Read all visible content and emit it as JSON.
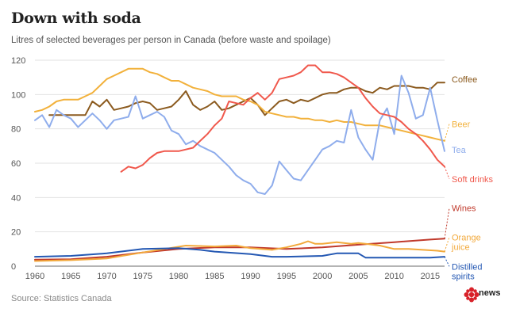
{
  "title": "Down with soda",
  "subtitle": "Litres of selected beverages per person in Canada (before waste and spoilage)",
  "source": "Source: Statistics Canada",
  "logo_text": "news",
  "chart_data": {
    "type": "line",
    "xlim": [
      1960,
      2017
    ],
    "ylim": [
      0,
      120
    ],
    "xticks": [
      1960,
      1965,
      1970,
      1975,
      1980,
      1985,
      1990,
      1995,
      2000,
      2005,
      2010,
      2015
    ],
    "yticks": [
      0,
      20,
      40,
      60,
      80,
      100,
      120
    ],
    "grid": true,
    "series": [
      {
        "name": "Coffee",
        "color": "#8b5a1e",
        "label_lines": [
          "Coffee"
        ],
        "x": [
          1962,
          1963,
          1964,
          1965,
          1966,
          1967,
          1968,
          1969,
          1970,
          1971,
          1972,
          1973,
          1974,
          1975,
          1976,
          1977,
          1978,
          1979,
          1980,
          1981,
          1982,
          1983,
          1984,
          1985,
          1986,
          1987,
          1988,
          1989,
          1990,
          1991,
          1992,
          1993,
          1994,
          1995,
          1996,
          1997,
          1998,
          1999,
          2000,
          2001,
          2002,
          2003,
          2004,
          2005,
          2006,
          2007,
          2008,
          2009,
          2010,
          2011,
          2012,
          2013,
          2014,
          2015,
          2016,
          2017
        ],
        "y": [
          88,
          88,
          88,
          88,
          88,
          88,
          96,
          93,
          97,
          91,
          92,
          93,
          95,
          96,
          95,
          91,
          92,
          93,
          97,
          102,
          94,
          91,
          93,
          96,
          91,
          92,
          94,
          96,
          98,
          94,
          88,
          92,
          96,
          97,
          95,
          97,
          96,
          98,
          100,
          101,
          101,
          103,
          104,
          104,
          102,
          101,
          104,
          103,
          105,
          105,
          105,
          104,
          104,
          103,
          107,
          107
        ]
      },
      {
        "name": "Beer",
        "color": "#f2b13b",
        "label_lines": [
          "Beer"
        ],
        "x": [
          1960,
          1961,
          1962,
          1963,
          1964,
          1965,
          1966,
          1967,
          1968,
          1969,
          1970,
          1971,
          1972,
          1973,
          1974,
          1975,
          1976,
          1977,
          1978,
          1979,
          1980,
          1981,
          1982,
          1983,
          1984,
          1985,
          1986,
          1987,
          1988,
          1989,
          1990,
          1991,
          1992,
          1993,
          1994,
          1995,
          1996,
          1997,
          1998,
          1999,
          2000,
          2001,
          2002,
          2003,
          2004,
          2005,
          2006,
          2007,
          2008,
          2009,
          2010,
          2011,
          2012,
          2013,
          2014,
          2015,
          2016,
          2017
        ],
        "y": [
          90,
          91,
          93,
          96,
          97,
          97,
          97,
          99,
          101,
          105,
          109,
          111,
          113,
          115,
          115,
          115,
          113,
          112,
          110,
          108,
          108,
          106,
          104,
          103,
          102,
          100,
          99,
          99,
          99,
          97,
          96,
          94,
          90,
          89,
          88,
          87,
          87,
          86,
          86,
          85,
          85,
          84,
          85,
          84,
          84,
          83,
          82,
          82,
          82,
          81,
          80,
          79,
          78,
          77,
          76,
          75,
          74,
          73
        ]
      },
      {
        "name": "Tea",
        "color": "#8fadec",
        "label_lines": [
          "Tea"
        ],
        "x": [
          1960,
          1961,
          1962,
          1963,
          1964,
          1965,
          1966,
          1967,
          1968,
          1969,
          1970,
          1971,
          1972,
          1973,
          1974,
          1975,
          1976,
          1977,
          1978,
          1979,
          1980,
          1981,
          1982,
          1983,
          1984,
          1985,
          1986,
          1987,
          1988,
          1989,
          1990,
          1991,
          1992,
          1993,
          1994,
          1995,
          1996,
          1997,
          1998,
          1999,
          2000,
          2001,
          2002,
          2003,
          2004,
          2005,
          2006,
          2007,
          2008,
          2009,
          2010,
          2011,
          2012,
          2013,
          2014,
          2015,
          2016,
          2017
        ],
        "y": [
          85,
          88,
          81,
          91,
          88,
          86,
          81,
          85,
          89,
          85,
          80,
          85,
          86,
          87,
          99,
          86,
          88,
          90,
          87,
          79,
          77,
          71,
          73,
          70,
          68,
          66,
          62,
          58,
          53,
          50,
          48,
          43,
          42,
          47,
          61,
          56,
          51,
          50,
          56,
          62,
          68,
          70,
          73,
          72,
          91,
          75,
          68,
          62,
          85,
          92,
          77,
          111,
          101,
          86,
          88,
          104,
          85,
          67
        ]
      },
      {
        "name": "Soft drinks",
        "color": "#f0584c",
        "label_lines": [
          "Soft drinks"
        ],
        "x": [
          1972,
          1973,
          1974,
          1975,
          1976,
          1977,
          1978,
          1979,
          1980,
          1981,
          1982,
          1983,
          1984,
          1985,
          1986,
          1987,
          1988,
          1989,
          1990,
          1991,
          1992,
          1993,
          1994,
          1995,
          1996,
          1997,
          1998,
          1999,
          2000,
          2001,
          2002,
          2003,
          2004,
          2005,
          2006,
          2007,
          2008,
          2009,
          2010,
          2011,
          2012,
          2013,
          2014,
          2015,
          2016,
          2017
        ],
        "y": [
          55,
          58,
          57,
          59,
          63,
          66,
          67,
          67,
          67,
          68,
          69,
          73,
          77,
          82,
          86,
          96,
          95,
          94,
          98,
          101,
          97,
          101,
          109,
          110,
          111,
          113,
          117,
          117,
          113,
          113,
          112,
          110,
          107,
          104,
          98,
          93,
          89,
          88,
          87,
          84,
          80,
          77,
          73,
          68,
          62,
          58
        ]
      },
      {
        "name": "Wines",
        "color": "#c0392b",
        "label_lines": [
          "Wines"
        ],
        "x": [
          1960,
          1965,
          1970,
          1975,
          1980,
          1985,
          1990,
          1995,
          2000,
          2005,
          2010,
          2015,
          2017
        ],
        "y": [
          3.8,
          4,
          5.5,
          8,
          10,
          11,
          11,
          10,
          11,
          12.5,
          14,
          15.5,
          16
        ]
      },
      {
        "name": "Orange juice",
        "color": "#f2a93b",
        "label_lines": [
          "Orange",
          "juice"
        ],
        "x": [
          1960,
          1965,
          1970,
          1975,
          1978,
          1981,
          1985,
          1988,
          1990,
          1993,
          1995,
          1997,
          1998,
          1999,
          2000,
          2002,
          2004,
          2005,
          2006,
          2008,
          2010,
          2012,
          2014,
          2016,
          2017
        ],
        "y": [
          3,
          3.5,
          4.5,
          8,
          10,
          12,
          11.5,
          12,
          10.5,
          9.5,
          11,
          13,
          14.5,
          13,
          13,
          14,
          13,
          13.5,
          13,
          12,
          10,
          10,
          9.5,
          9,
          8.5
        ]
      },
      {
        "name": "Distilled spirits",
        "color": "#2458b3",
        "label_lines": [
          "Distilled",
          "spirits"
        ],
        "x": [
          1960,
          1965,
          1970,
          1975,
          1980,
          1983,
          1985,
          1990,
          1993,
          1995,
          2000,
          2002,
          2005,
          2006,
          2008,
          2010,
          2015,
          2017
        ],
        "y": [
          5.5,
          6,
          7.5,
          10,
          10.5,
          9.5,
          8.5,
          7,
          5.5,
          5.5,
          6,
          7.5,
          7.5,
          5,
          5,
          5,
          5,
          5.5
        ]
      }
    ]
  }
}
